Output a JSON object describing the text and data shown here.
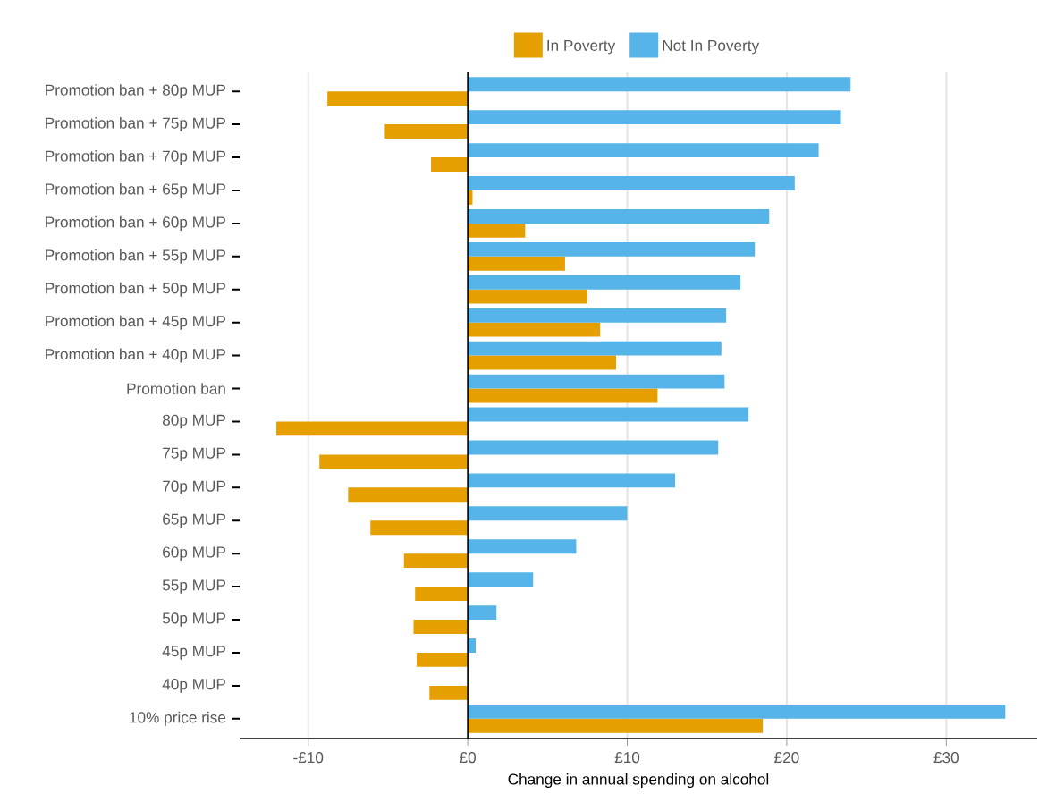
{
  "chart_data": {
    "type": "bar",
    "orientation": "horizontal",
    "xlabel": "Change in annual spending on alcohol",
    "categories": [
      "Promotion ban + 80p MUP",
      "Promotion ban + 75p MUP",
      "Promotion ban + 70p MUP",
      "Promotion ban + 65p MUP",
      "Promotion ban + 60p MUP",
      "Promotion ban + 55p MUP",
      "Promotion ban + 50p MUP",
      "Promotion ban + 45p MUP",
      "Promotion ban + 40p MUP",
      "Promotion ban",
      "80p MUP",
      "75p MUP",
      "70p MUP",
      "65p MUP",
      "60p MUP",
      "55p MUP",
      "50p MUP",
      "45p MUP",
      "40p MUP",
      "10% price rise"
    ],
    "series": [
      {
        "name": "In Poverty",
        "color": "#e69f00",
        "values": [
          -8.8,
          -5.2,
          -2.3,
          0.3,
          3.6,
          6.1,
          7.5,
          8.3,
          9.3,
          11.9,
          -12.0,
          -9.3,
          -7.5,
          -6.1,
          -4.0,
          -3.3,
          -3.4,
          -3.2,
          -2.4,
          18.5
        ]
      },
      {
        "name": "Not In Poverty",
        "color": "#56b4e9",
        "values": [
          24.0,
          23.4,
          22.0,
          20.5,
          18.9,
          18.0,
          17.1,
          16.2,
          15.9,
          16.1,
          17.6,
          15.7,
          13.0,
          10.0,
          6.8,
          4.1,
          1.8,
          0.5,
          0,
          33.7
        ]
      }
    ],
    "xlim": [
      -14.3,
      35.7
    ],
    "xticks": [
      {
        "value": -10,
        "label": "-£10"
      },
      {
        "value": 0,
        "label": "£0"
      },
      {
        "value": 10,
        "label": "£10"
      },
      {
        "value": 20,
        "label": "£20"
      },
      {
        "value": 30,
        "label": "£30"
      }
    ],
    "ref_lines": [
      {
        "axis": "x",
        "value": 0,
        "color": "#000000"
      }
    ],
    "grid": "x",
    "legend": "top"
  }
}
